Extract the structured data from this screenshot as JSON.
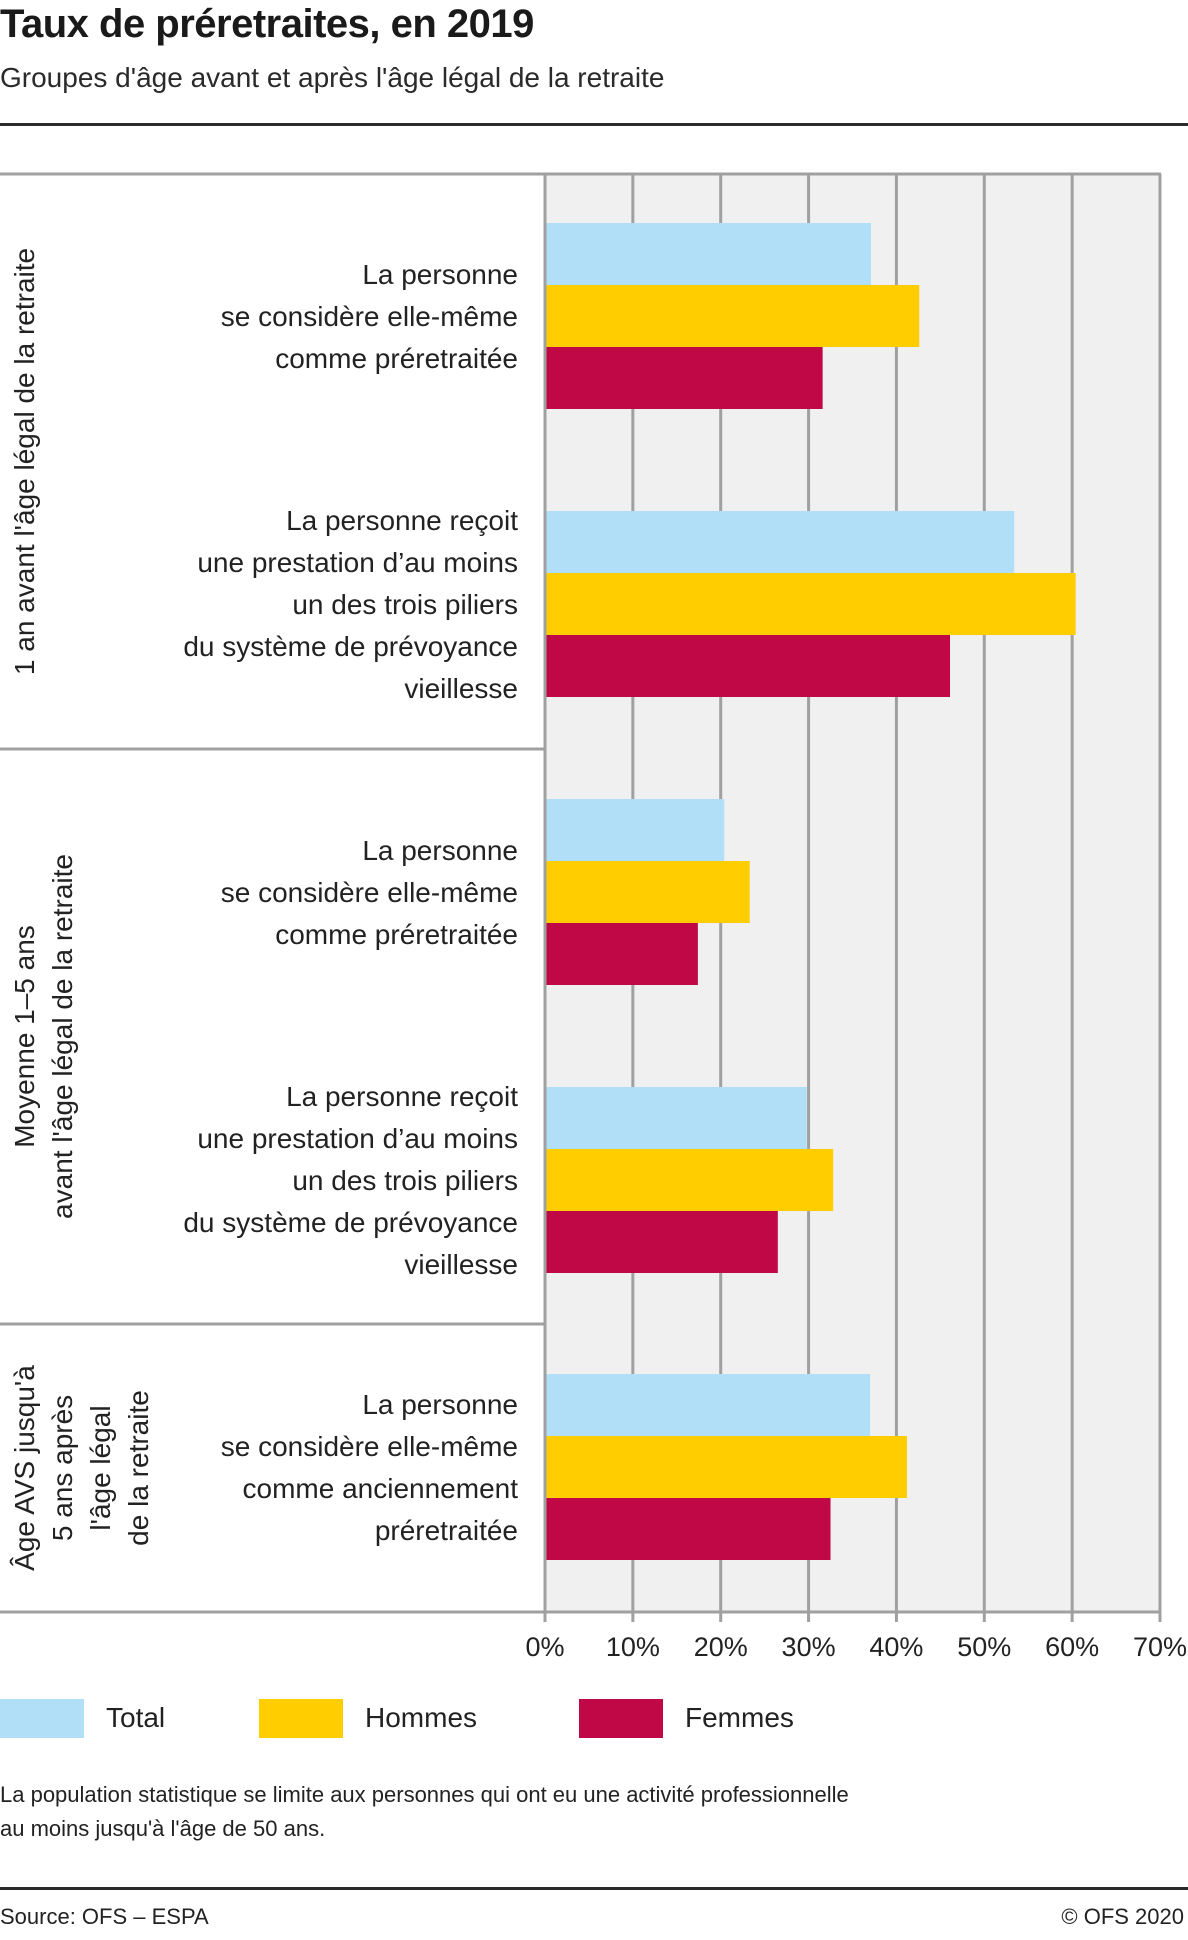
{
  "header": {
    "title": "Taux de préretraites, en 2019",
    "subtitle": "Groupes d'âge avant et après l'âge légal de la retraite"
  },
  "legend": [
    {
      "label": "Total",
      "color": "#b1dff7"
    },
    {
      "label": "Hommes",
      "color": "#ffcd00"
    },
    {
      "label": "Femmes",
      "color": "#bf0845"
    }
  ],
  "note": {
    "line1": "La population statistique se limite aux personnes qui ont eu une activité professionnelle",
    "line2": "au moins jusqu'à l'âge de 50 ans."
  },
  "footer": {
    "source": "Source: OFS – ESPA",
    "copyright": "© OFS 2020"
  },
  "chart_data": {
    "type": "bar",
    "orientation": "horizontal",
    "title": "Taux de préretraites, en 2019",
    "subtitle": "Groupes d'âge avant et après l'âge légal de la retraite",
    "xlabel": "",
    "ylabel": "",
    "xlim": [
      0,
      70
    ],
    "x_ticks": [
      0,
      10,
      20,
      30,
      40,
      50,
      60,
      70
    ],
    "x_tick_labels": [
      "0%",
      "10%",
      "20%",
      "30%",
      "40%",
      "50%",
      "60%",
      "70%"
    ],
    "grid": true,
    "legend_position": "bottom-left",
    "series_names": [
      "Total",
      "Hommes",
      "Femmes"
    ],
    "groups": [
      {
        "label_lines": [
          "1 an avant l'âge légal de la retraite"
        ],
        "categories": [
          {
            "label_lines": [
              "La personne",
              "se considère elle-même",
              "comme préretraitée"
            ],
            "values": {
              "Total": 37.1,
              "Hommes": 42.6,
              "Femmes": 31.6
            }
          },
          {
            "label_lines": [
              "La personne reçoit",
              "une prestation d’au moins",
              "un des trois piliers",
              "du système de prévoyance",
              "vieillesse"
            ],
            "values": {
              "Total": 53.4,
              "Hommes": 60.4,
              "Femmes": 46.1
            }
          }
        ]
      },
      {
        "label_lines": [
          "Moyenne 1–5 ans",
          "avant l'âge légal de la retraite"
        ],
        "categories": [
          {
            "label_lines": [
              "La personne",
              "se considère elle-même",
              "comme préretraitée"
            ],
            "values": {
              "Total": 20.4,
              "Hommes": 23.3,
              "Femmes": 17.4
            }
          },
          {
            "label_lines": [
              "La personne reçoit",
              "une prestation d’au moins",
              "un des trois piliers",
              "du système de prévoyance",
              "vieillesse"
            ],
            "values": {
              "Total": 29.8,
              "Hommes": 32.8,
              "Femmes": 26.5
            }
          }
        ]
      },
      {
        "label_lines": [
          "Âge AVS jusqu'à",
          "5 ans après",
          "l'âge légal",
          "de la retraite"
        ],
        "categories": [
          {
            "label_lines": [
              "La personne",
              "se considère elle-même",
              "comme anciennement",
              "préretraitée"
            ],
            "values": {
              "Total": 37.0,
              "Hommes": 41.2,
              "Femmes": 32.5
            }
          }
        ]
      }
    ]
  }
}
